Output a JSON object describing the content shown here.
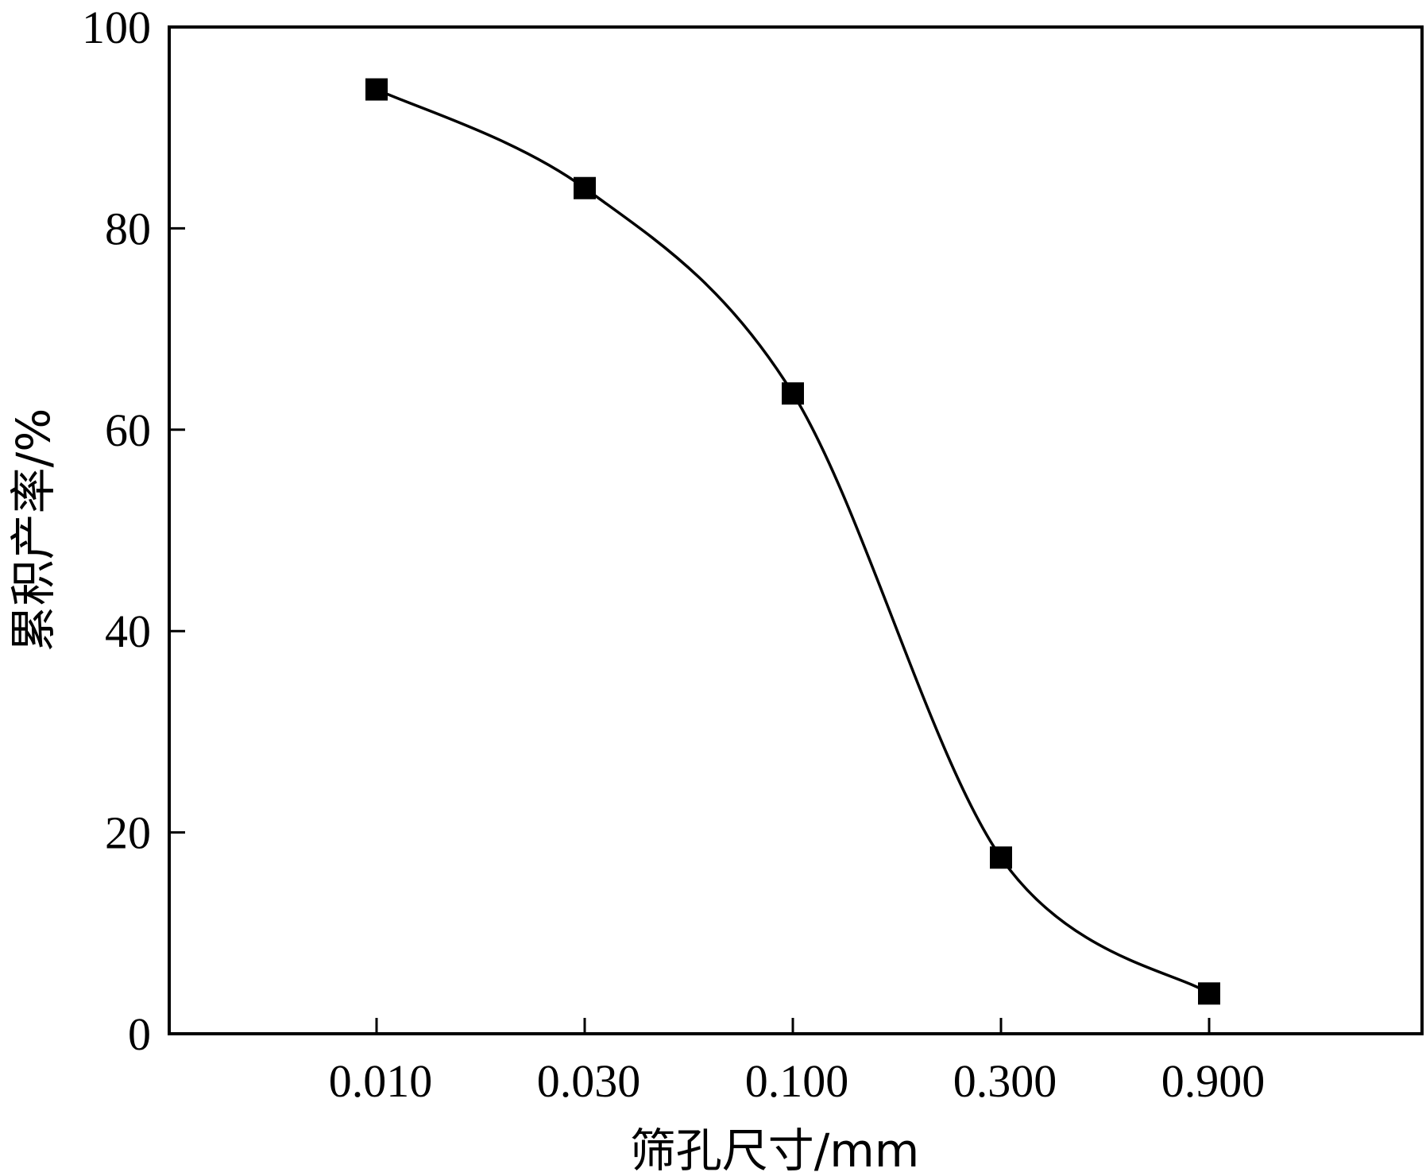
{
  "chart_data": {
    "type": "line",
    "xlabel": "筛孔尺寸/mm",
    "ylabel": "累积产率/%",
    "categories": [
      "0.010",
      "0.030",
      "0.100",
      "0.300",
      "0.900"
    ],
    "y_ticks": [
      "0",
      "20",
      "40",
      "60",
      "80",
      "100"
    ],
    "ylim": [
      0,
      100
    ],
    "grid": false,
    "series": [
      {
        "values": [
          93.8,
          84.0,
          63.6,
          17.5,
          4.0
        ]
      }
    ],
    "line_color": "#000000",
    "marker": "square"
  }
}
